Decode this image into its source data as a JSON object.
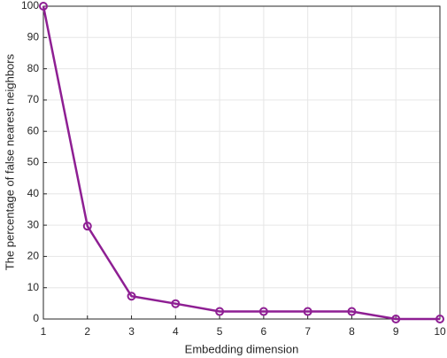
{
  "chart_data": {
    "type": "line",
    "x_label": "Embedding dimension",
    "y_label": "The percentage of false nearest neighbors",
    "x": [
      1,
      2,
      3,
      4,
      5,
      6,
      7,
      8,
      9,
      10
    ],
    "values": [
      100,
      29.7,
      7.3,
      4.9,
      2.4,
      2.4,
      2.4,
      2.4,
      0,
      0
    ],
    "color": "#8e1f93",
    "xlim": [
      1,
      10
    ],
    "xticks": [
      1,
      2,
      3,
      4,
      5,
      6,
      7,
      8,
      9,
      10
    ],
    "ylim": [
      0,
      100
    ],
    "yticks": [
      0,
      10,
      20,
      30,
      40,
      50,
      60,
      70,
      80,
      90,
      100
    ],
    "grid": true
  }
}
